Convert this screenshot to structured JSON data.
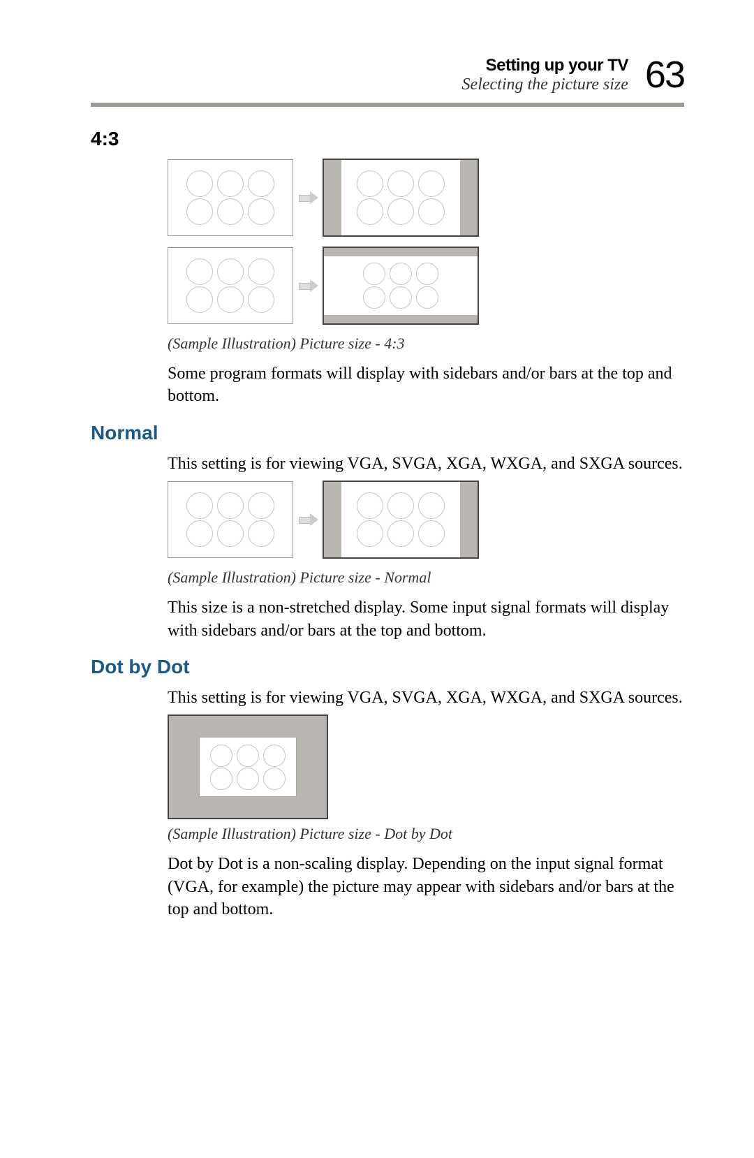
{
  "header": {
    "chapter_title": "Setting up your TV",
    "subtitle": "Selecting the picture size",
    "page_number": "63"
  },
  "sections": {
    "s43": {
      "heading": "4:3",
      "caption": "(Sample Illustration) Picture size - 4:3",
      "body": "Some program formats will display with sidebars and/or bars at the top and bottom."
    },
    "normal": {
      "heading": "Normal",
      "intro": "This setting is for viewing VGA, SVGA, XGA, WXGA, and SXGA sources.",
      "caption": "(Sample Illustration) Picture size - Normal",
      "body": "This size is a non-stretched display. Some input signal formats will display with sidebars and/or bars at the top and bottom."
    },
    "dotbydot": {
      "heading": "Dot by Dot",
      "intro": "This setting is for viewing VGA, SVGA, XGA, WXGA, and SXGA sources.",
      "caption": "(Sample Illustration) Picture size - Dot by Dot",
      "body": "Dot by Dot is a non-scaling display. Depending on the input signal format (VGA, for example) the picture may appear with sidebars and/or bars at the top and bottom."
    }
  },
  "colors": {
    "accent_heading": "#1a5a8a",
    "divider": "#9d9a96",
    "panel_bg": "#b9b6b1",
    "circle_border": "#c8c5c1"
  }
}
